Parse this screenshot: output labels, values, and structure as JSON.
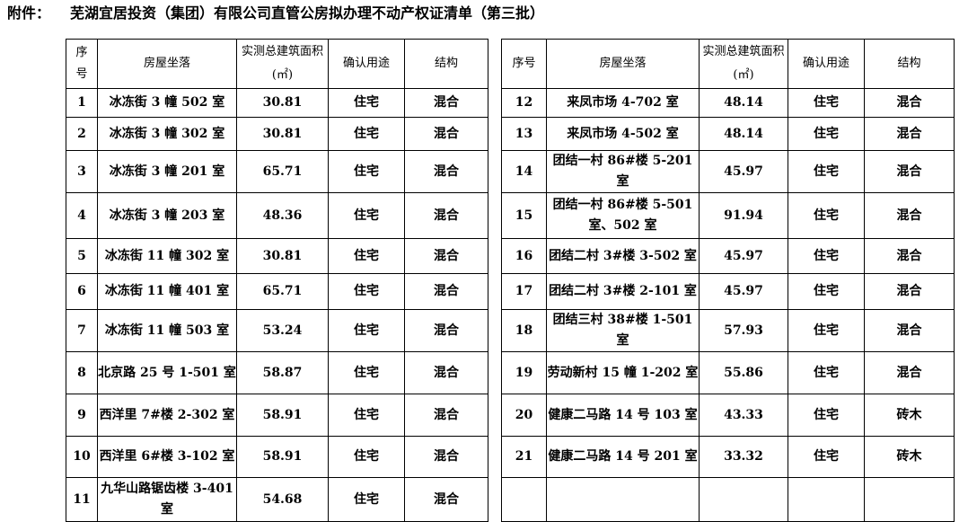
{
  "title": {
    "label": "附件：",
    "text": "芜湖宜居投资（集团）有限公司直管公房拟办理不动产权证清单（第三批）"
  },
  "headers": {
    "seq_left": "序\n号",
    "seq_right": "序号",
    "location": "房屋坐落",
    "area": "实测总建筑面积(㎡)",
    "usage": "确认用途",
    "structure": "结构"
  },
  "left_rows": [
    {
      "seq": "1",
      "location": "冰冻街 3 幢 502 室",
      "area": "30.81",
      "usage": "住宅",
      "structure": "混合"
    },
    {
      "seq": "2",
      "location": "冰冻街 3 幢 302 室",
      "area": "30.81",
      "usage": "住宅",
      "structure": "混合"
    },
    {
      "seq": "3",
      "location": "冰冻街 3 幢 201 室",
      "area": "65.71",
      "usage": "住宅",
      "structure": "混合"
    },
    {
      "seq": "4",
      "location": "冰冻街 3 幢 203 室",
      "area": "48.36",
      "usage": "住宅",
      "structure": "混合"
    },
    {
      "seq": "5",
      "location": "冰冻街 11 幢 302 室",
      "area": "30.81",
      "usage": "住宅",
      "structure": "混合"
    },
    {
      "seq": "6",
      "location": "冰冻街 11 幢 401 室",
      "area": "65.71",
      "usage": "住宅",
      "structure": "混合"
    },
    {
      "seq": "7",
      "location": "冰冻街 11 幢 503 室",
      "area": "53.24",
      "usage": "住宅",
      "structure": "混合"
    },
    {
      "seq": "8",
      "location": "北京路 25 号 1-501 室",
      "area": "58.87",
      "usage": "住宅",
      "structure": "混合"
    },
    {
      "seq": "9",
      "location": "西洋里 7#楼 2-302 室",
      "area": "58.91",
      "usage": "住宅",
      "structure": "混合"
    },
    {
      "seq": "10",
      "location": "西洋里 6#楼 3-102 室",
      "area": "58.91",
      "usage": "住宅",
      "structure": "混合"
    },
    {
      "seq": "11",
      "location": "九华山路锯齿楼 3-401 室",
      "area": "54.68",
      "usage": "住宅",
      "structure": "混合"
    }
  ],
  "right_rows": [
    {
      "seq": "12",
      "location": "来凤市场 4-702 室",
      "area": "48.14",
      "usage": "住宅",
      "structure": "混合"
    },
    {
      "seq": "13",
      "location": "来凤市场 4-502 室",
      "area": "48.14",
      "usage": "住宅",
      "structure": "混合"
    },
    {
      "seq": "14",
      "location": "团结一村 86#楼 5-201 室",
      "area": "45.97",
      "usage": "住宅",
      "structure": "混合"
    },
    {
      "seq": "15",
      "location": "团结一村 86#楼 5-501 室、502 室",
      "area": "91.94",
      "usage": "住宅",
      "structure": "混合"
    },
    {
      "seq": "16",
      "location": "团结二村 3#楼 3-502 室",
      "area": "45.97",
      "usage": "住宅",
      "structure": "混合"
    },
    {
      "seq": "17",
      "location": "团结二村 3#楼 2-101 室",
      "area": "45.97",
      "usage": "住宅",
      "structure": "混合"
    },
    {
      "seq": "18",
      "location": "团结三村 38#楼 1-501 室",
      "area": "57.93",
      "usage": "住宅",
      "structure": "混合"
    },
    {
      "seq": "19",
      "location": "劳动新村 15 幢 1-202 室",
      "area": "55.86",
      "usage": "住宅",
      "structure": "混合"
    },
    {
      "seq": "20",
      "location": "健康二马路 14 号 103 室",
      "area": "43.33",
      "usage": "住宅",
      "structure": "砖木"
    },
    {
      "seq": "21",
      "location": "健康二马路 14 号 201 室",
      "area": "33.32",
      "usage": "住宅",
      "structure": "砖木"
    }
  ]
}
